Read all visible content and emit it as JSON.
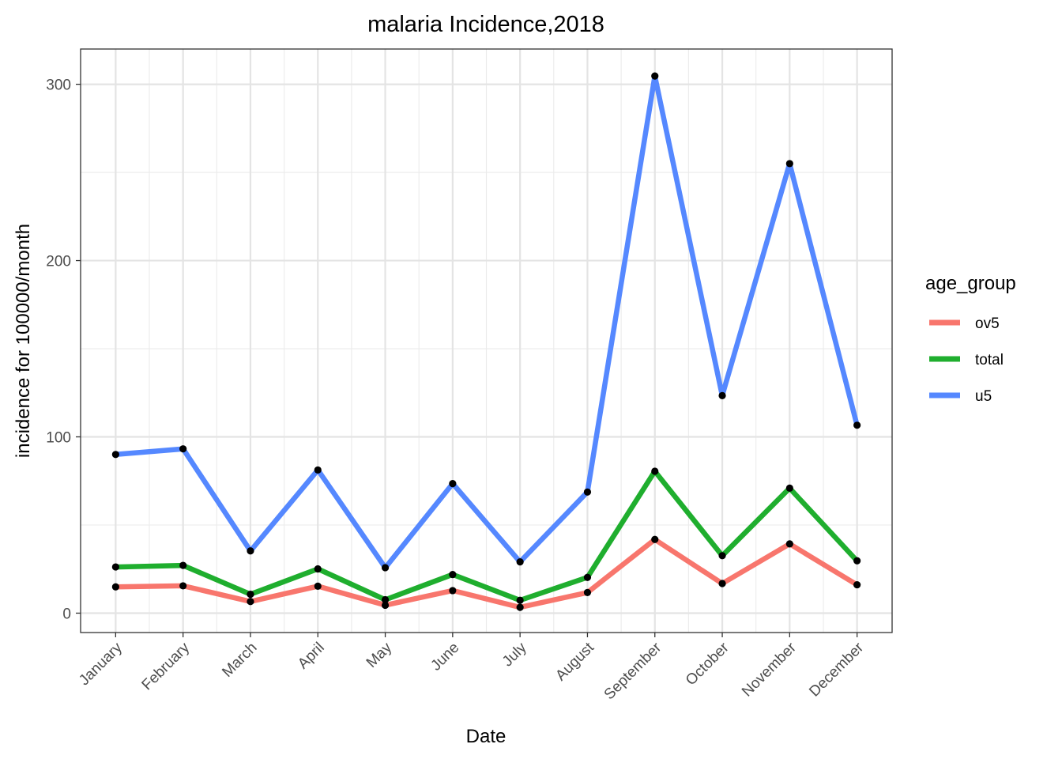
{
  "chart_data": {
    "type": "line",
    "title": "malaria Incidence,2018",
    "xlabel": "Date",
    "ylabel": "incidence for 100000/month",
    "categories": [
      "January",
      "February",
      "March",
      "April",
      "May",
      "June",
      "July",
      "August",
      "September",
      "October",
      "November",
      "December"
    ],
    "y_ticks": [
      0,
      100,
      200,
      300
    ],
    "ylim": [
      -11,
      320
    ],
    "grid": true,
    "legend": {
      "title": "age_group",
      "position": "right"
    },
    "series": [
      {
        "name": "ov5",
        "color": "#F8766D",
        "values": [
          14.9,
          15.5,
          6.6,
          15.3,
          4.5,
          12.8,
          3.3,
          11.7,
          41.8,
          16.8,
          39.3,
          16.1
        ]
      },
      {
        "name": "total",
        "color": "#1FAE2E",
        "values": [
          26.2,
          27.1,
          10.7,
          25.1,
          7.6,
          21.9,
          7.3,
          20.3,
          80.5,
          32.6,
          70.9,
          29.7
        ]
      },
      {
        "name": "u5",
        "color": "#5588FF",
        "values": [
          90.0,
          93.2,
          35.3,
          81.2,
          25.8,
          73.5,
          29.1,
          68.7,
          304.7,
          123.4,
          255.0,
          106.6
        ]
      }
    ]
  }
}
